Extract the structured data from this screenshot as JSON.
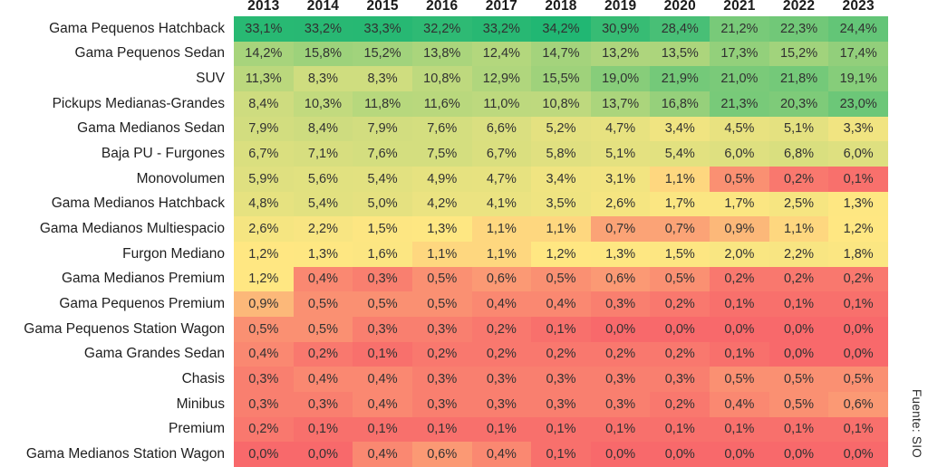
{
  "source_note": "Fuente: SIO",
  "chart_data": {
    "type": "heatmap",
    "title": "",
    "xlabel": "",
    "ylabel": "",
    "unit": "%",
    "number_format": "one decimal, comma as decimal separator, trailing % sign",
    "legend_position": "none",
    "grid": false,
    "columns": [
      "2013",
      "2014",
      "2015",
      "2016",
      "2017",
      "2018",
      "2019",
      "2020",
      "2021",
      "2022",
      "2023"
    ],
    "rows": [
      {
        "label": "Gama Pequenos Hatchback",
        "values": [
          33.1,
          33.2,
          33.3,
          32.2,
          33.2,
          34.2,
          30.9,
          28.4,
          21.2,
          22.3,
          24.4
        ]
      },
      {
        "label": "Gama Pequenos Sedan",
        "values": [
          14.2,
          15.8,
          15.2,
          13.8,
          12.4,
          14.7,
          13.2,
          13.5,
          17.3,
          15.2,
          17.4
        ]
      },
      {
        "label": "SUV",
        "values": [
          11.3,
          8.3,
          8.3,
          10.8,
          12.9,
          15.5,
          19.0,
          21.9,
          21.0,
          21.8,
          19.1
        ]
      },
      {
        "label": "Pickups Medianas-Grandes",
        "values": [
          8.4,
          10.3,
          11.8,
          11.6,
          11.0,
          10.8,
          13.7,
          16.8,
          21.3,
          20.3,
          23.0
        ]
      },
      {
        "label": "Gama Medianos Sedan",
        "values": [
          7.9,
          8.4,
          7.9,
          7.6,
          6.6,
          5.2,
          4.7,
          3.4,
          4.5,
          5.1,
          3.3
        ]
      },
      {
        "label": "Baja PU - Furgones",
        "values": [
          6.7,
          7.1,
          7.6,
          7.5,
          6.7,
          5.8,
          5.1,
          5.4,
          6.0,
          6.8,
          6.0
        ]
      },
      {
        "label": "Monovolumen",
        "values": [
          5.9,
          5.6,
          5.4,
          4.9,
          4.7,
          3.4,
          3.1,
          1.1,
          0.5,
          0.2,
          0.1
        ]
      },
      {
        "label": "Gama Medianos Hatchback",
        "values": [
          4.8,
          5.4,
          5.0,
          4.2,
          4.1,
          3.5,
          2.6,
          1.7,
          1.7,
          2.5,
          1.3
        ]
      },
      {
        "label": "Gama Medianos Multiespacio",
        "values": [
          2.6,
          2.2,
          1.5,
          1.3,
          1.1,
          1.1,
          0.7,
          0.7,
          0.9,
          1.1,
          1.2
        ]
      },
      {
        "label": "Furgon Mediano",
        "values": [
          1.2,
          1.3,
          1.6,
          1.1,
          1.1,
          1.2,
          1.3,
          1.5,
          2.0,
          2.2,
          1.8
        ]
      },
      {
        "label": "Gama Medianos Premium",
        "values": [
          1.2,
          0.4,
          0.3,
          0.5,
          0.6,
          0.5,
          0.6,
          0.5,
          0.2,
          0.2,
          0.2
        ]
      },
      {
        "label": "Gama Pequenos Premium",
        "values": [
          0.9,
          0.5,
          0.5,
          0.5,
          0.4,
          0.4,
          0.3,
          0.2,
          0.1,
          0.1,
          0.1
        ]
      },
      {
        "label": "Gama Pequenos Station Wagon",
        "values": [
          0.5,
          0.5,
          0.3,
          0.3,
          0.2,
          0.1,
          0.0,
          0.0,
          0.0,
          0.0,
          0.0
        ]
      },
      {
        "label": "Gama Grandes Sedan",
        "values": [
          0.4,
          0.2,
          0.1,
          0.2,
          0.2,
          0.2,
          0.2,
          0.2,
          0.1,
          0.0,
          0.0
        ]
      },
      {
        "label": "Chasis",
        "values": [
          0.3,
          0.4,
          0.4,
          0.3,
          0.3,
          0.3,
          0.3,
          0.3,
          0.5,
          0.5,
          0.5
        ]
      },
      {
        "label": "Minibus",
        "values": [
          0.3,
          0.3,
          0.4,
          0.3,
          0.3,
          0.3,
          0.3,
          0.2,
          0.4,
          0.5,
          0.6
        ]
      },
      {
        "label": "Premium",
        "values": [
          0.2,
          0.1,
          0.1,
          0.1,
          0.1,
          0.1,
          0.1,
          0.1,
          0.1,
          0.1,
          0.1
        ]
      },
      {
        "label": "Gama Medianos Station Wagon",
        "values": [
          0.0,
          0.0,
          0.4,
          0.6,
          0.4,
          0.1,
          0.0,
          0.0,
          0.0,
          0.0,
          0.0
        ]
      }
    ],
    "colorscale": {
      "type": "red-yellow-green",
      "min_value": 0.0,
      "mid_value": 1.15,
      "max_value": 34.2,
      "min_color": "#F8696B",
      "mid_color": "#FFE782",
      "max_color": "#21B773"
    }
  }
}
